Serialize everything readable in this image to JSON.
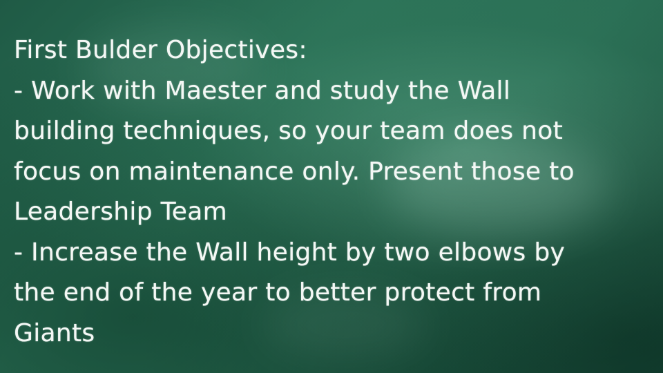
{
  "slide": {
    "background_color": "#2a6f55",
    "text_color": "#f4f8f5",
    "lines": [
      "First Bulder Objectives:",
      "- Work with Maester and study the Wall",
      "building techniques, so your team does not",
      "focus on maintenance only. Present those to",
      "Leadership Team",
      "- Increase the Wall height by two elbows by",
      "the end of the year to better protect from",
      "Giants"
    ]
  }
}
